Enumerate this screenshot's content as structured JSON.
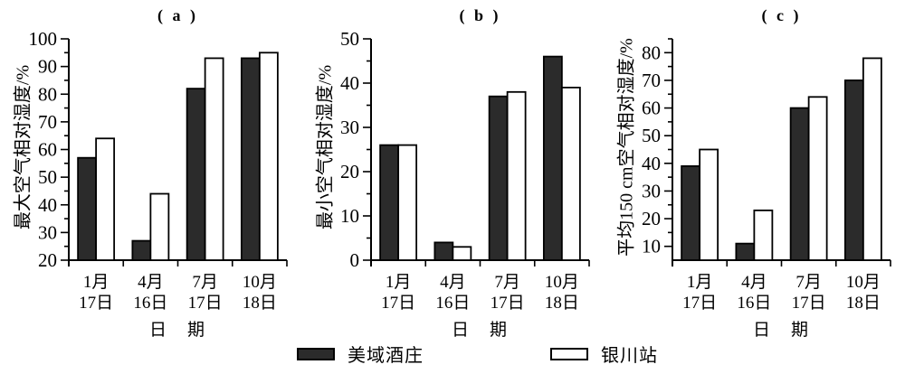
{
  "figure": {
    "background": "#ffffff"
  },
  "colors": {
    "bar_fill_dark": "#2b2b2b",
    "bar_fill_light": "#ffffff",
    "axis": "#000000"
  },
  "legend": {
    "position": "bottom-center",
    "items": [
      {
        "label": "美域酒庄",
        "swatch": "dark"
      },
      {
        "label": "银川站",
        "swatch": "light"
      }
    ]
  },
  "chart_data": [
    {
      "type": "bar",
      "title": "( a )",
      "ylabel": "最大空气相对湿度/%",
      "xlabel": "日　期",
      "ylim": [
        20,
        100
      ],
      "yticks_major": [
        20,
        30,
        40,
        50,
        60,
        70,
        80,
        90,
        100
      ],
      "ytick_minor_step": 5,
      "grid": false,
      "categories": [
        [
          "1月",
          "17日"
        ],
        [
          "4月",
          "16日"
        ],
        [
          "7月",
          "17日"
        ],
        [
          "10月",
          "18日"
        ]
      ],
      "series": [
        {
          "name": "美域酒庄",
          "swatch": "dark",
          "values": [
            57,
            27,
            82,
            93
          ]
        },
        {
          "name": "银川站",
          "swatch": "light",
          "values": [
            64,
            44,
            93,
            95
          ]
        }
      ]
    },
    {
      "type": "bar",
      "title": "( b )",
      "ylabel": "最小空气相对湿度/%",
      "xlabel": "日　期",
      "ylim": [
        0,
        50
      ],
      "yticks_major": [
        0,
        10,
        20,
        30,
        40,
        50
      ],
      "ytick_minor_step": 5,
      "grid": false,
      "categories": [
        [
          "1月",
          "17日"
        ],
        [
          "4月",
          "16日"
        ],
        [
          "7月",
          "17日"
        ],
        [
          "10月",
          "18日"
        ]
      ],
      "series": [
        {
          "name": "美域酒庄",
          "swatch": "dark",
          "values": [
            26,
            4,
            37,
            46
          ]
        },
        {
          "name": "银川站",
          "swatch": "light",
          "values": [
            26,
            3,
            38,
            39
          ]
        }
      ]
    },
    {
      "type": "bar",
      "title": "( c )",
      "ylabel": "平均150 cm空气相对湿度/%",
      "xlabel": "日　期",
      "ylim": [
        5,
        85
      ],
      "yticks_major": [
        10,
        20,
        30,
        40,
        50,
        60,
        70,
        80
      ],
      "ytick_minor_step": 5,
      "grid": false,
      "categories": [
        [
          "1月",
          "17日"
        ],
        [
          "4月",
          "16日"
        ],
        [
          "7月",
          "17日"
        ],
        [
          "10月",
          "18日"
        ]
      ],
      "series": [
        {
          "name": "美域酒庄",
          "swatch": "dark",
          "values": [
            39,
            11,
            60,
            70
          ]
        },
        {
          "name": "银川站",
          "swatch": "light",
          "values": [
            45,
            23,
            64,
            78
          ]
        }
      ]
    }
  ]
}
